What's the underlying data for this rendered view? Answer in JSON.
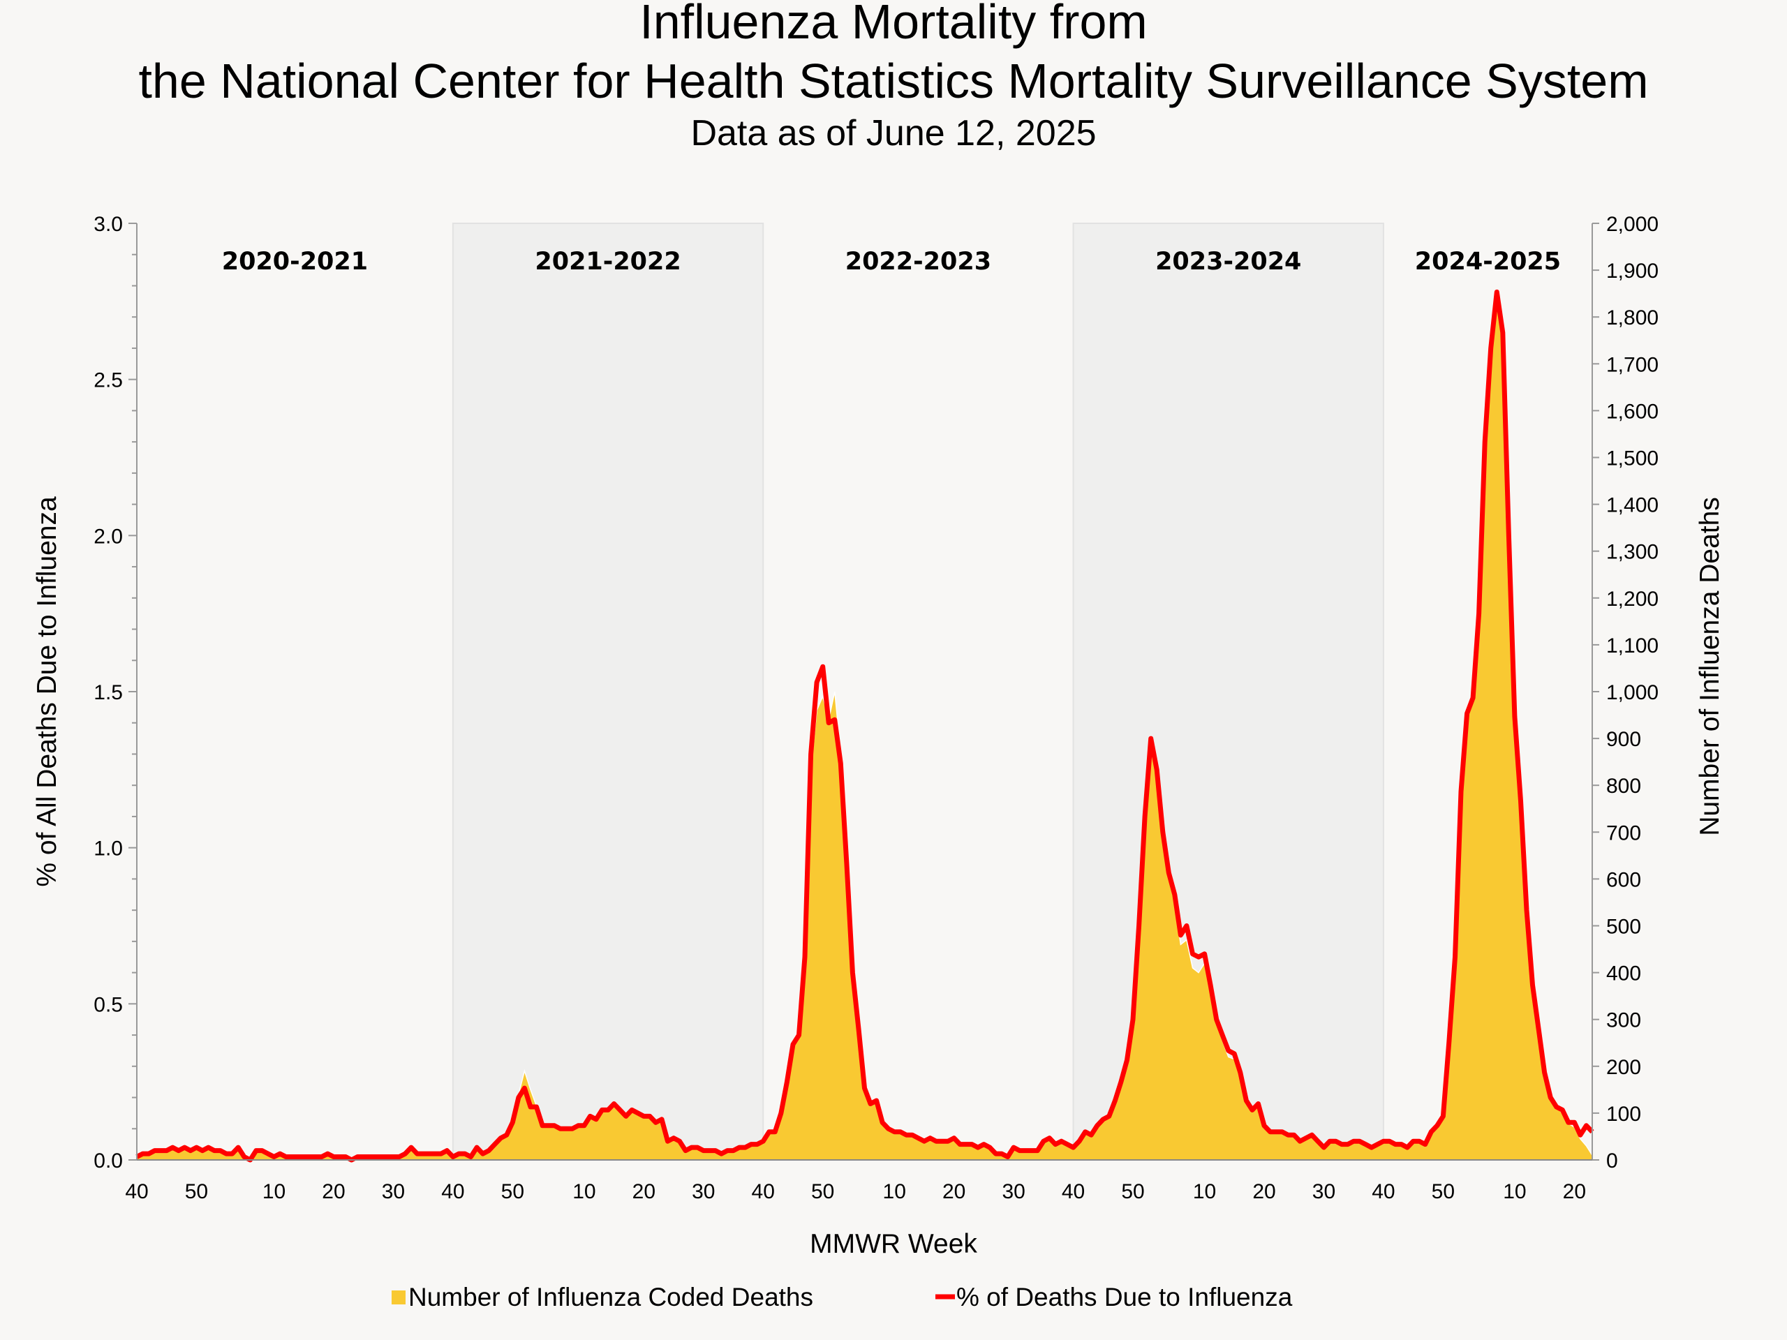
{
  "chart_data": {
    "type": "area+line",
    "title_line1": "Influenza Mortality from",
    "title_line2": "the National Center for Health Statistics Mortality Surveillance System",
    "subtitle": "Data as of June 12, 2025",
    "xlabel": "MMWR Week",
    "ylabel_left": "% of All Deaths Due to Influenza",
    "ylabel_right": "Number of Influenza Deaths",
    "ylim_left": [
      0,
      3.0
    ],
    "ylim_right": [
      0,
      2000
    ],
    "yticks_left": [
      "0.0",
      "0.5",
      "1.0",
      "1.5",
      "2.0",
      "2.5",
      "3.0"
    ],
    "yticks_right": [
      "0",
      "100",
      "200",
      "300",
      "400",
      "500",
      "600",
      "700",
      "800",
      "900",
      "1,000",
      "1,100",
      "1,200",
      "1,300",
      "1,400",
      "1,500",
      "1,600",
      "1,700",
      "1,800",
      "1,900",
      "2,000"
    ],
    "legend_position": "bottom",
    "colors": {
      "deaths_area": "#f9c932",
      "pct_line": "#ff0000",
      "shaded_season": "#efefee",
      "background": "#f8f7f5"
    },
    "series": [
      {
        "name": "Number of Influenza Coded Deaths",
        "type": "area",
        "axis": "right"
      },
      {
        "name": "% of Deaths Due to Influenza",
        "type": "line",
        "axis": "left"
      }
    ],
    "seasons": [
      {
        "label": "2020-2021",
        "shaded": false,
        "week_ticks": [
          "40",
          "50",
          "10",
          "20",
          "30"
        ],
        "weeks_in_first_year": 53,
        "pct": [
          0.01,
          0.02,
          0.02,
          0.03,
          0.03,
          0.03,
          0.04,
          0.03,
          0.04,
          0.03,
          0.04,
          0.03,
          0.04,
          0.03,
          0.03,
          0.02,
          0.02,
          0.04,
          0.01,
          0.0,
          0.03,
          0.03,
          0.02,
          0.01,
          0.02,
          0.01,
          0.01,
          0.01,
          0.01,
          0.01,
          0.01,
          0.01,
          0.02,
          0.01,
          0.01,
          0.01,
          0.0,
          0.01,
          0.01,
          0.01,
          0.01,
          0.01,
          0.01,
          0.01,
          0.01,
          0.02,
          0.04,
          0.02,
          0.02,
          0.02,
          0.02,
          0.02,
          0.03
        ],
        "deaths": [
          7,
          13,
          13,
          20,
          20,
          20,
          26,
          20,
          26,
          20,
          26,
          20,
          26,
          20,
          20,
          13,
          13,
          26,
          7,
          0,
          20,
          20,
          13,
          7,
          13,
          7,
          7,
          7,
          7,
          7,
          7,
          7,
          13,
          7,
          7,
          7,
          0,
          7,
          7,
          7,
          7,
          7,
          7,
          7,
          7,
          13,
          26,
          13,
          13,
          13,
          13,
          13,
          20
        ]
      },
      {
        "label": "2021-2022",
        "shaded": true,
        "week_ticks": [
          "40",
          "50",
          "10",
          "20",
          "30"
        ],
        "weeks_in_first_year": 52,
        "pct": [
          0.01,
          0.02,
          0.02,
          0.01,
          0.04,
          0.02,
          0.03,
          0.05,
          0.07,
          0.08,
          0.12,
          0.2,
          0.23,
          0.17,
          0.17,
          0.11,
          0.11,
          0.11,
          0.1,
          0.1,
          0.1,
          0.11,
          0.11,
          0.14,
          0.13,
          0.16,
          0.16,
          0.18,
          0.16,
          0.14,
          0.16,
          0.15,
          0.14,
          0.14,
          0.12,
          0.13,
          0.06,
          0.07,
          0.06,
          0.03,
          0.04,
          0.04,
          0.03,
          0.03,
          0.03,
          0.02,
          0.03,
          0.03,
          0.04,
          0.04,
          0.05,
          0.05
        ],
        "deaths": [
          7,
          13,
          13,
          7,
          26,
          13,
          20,
          33,
          46,
          52,
          78,
          140,
          190,
          150,
          115,
          72,
          72,
          72,
          65,
          65,
          65,
          72,
          72,
          91,
          85,
          104,
          104,
          117,
          104,
          91,
          104,
          98,
          91,
          91,
          78,
          85,
          39,
          46,
          39,
          20,
          26,
          26,
          20,
          20,
          20,
          13,
          20,
          20,
          26,
          26,
          33,
          33
        ]
      },
      {
        "label": "2022-2023",
        "shaded": false,
        "week_ticks": [
          "40",
          "50",
          "10",
          "20",
          "30"
        ],
        "weeks_in_first_year": 52,
        "pct": [
          0.06,
          0.09,
          0.09,
          0.15,
          0.25,
          0.37,
          0.4,
          0.65,
          1.3,
          1.53,
          1.58,
          1.4,
          1.41,
          1.27,
          0.95,
          0.6,
          0.42,
          0.23,
          0.18,
          0.19,
          0.12,
          0.1,
          0.09,
          0.09,
          0.08,
          0.08,
          0.07,
          0.06,
          0.07,
          0.06,
          0.06,
          0.06,
          0.07,
          0.05,
          0.05,
          0.05,
          0.04,
          0.05,
          0.04,
          0.02,
          0.02,
          0.01,
          0.04,
          0.03,
          0.03,
          0.03,
          0.03,
          0.06,
          0.07,
          0.05,
          0.06,
          0.05
        ],
        "deaths": [
          39,
          58,
          58,
          98,
          163,
          240,
          260,
          420,
          830,
          960,
          990,
          940,
          1000,
          870,
          640,
          400,
          280,
          150,
          118,
          124,
          78,
          65,
          58,
          58,
          52,
          52,
          46,
          39,
          46,
          39,
          39,
          39,
          46,
          33,
          33,
          33,
          26,
          33,
          26,
          13,
          13,
          7,
          26,
          20,
          20,
          20,
          20,
          39,
          46,
          33,
          39,
          33
        ]
      },
      {
        "label": "2023-2024",
        "shaded": true,
        "week_ticks": [
          "40",
          "50",
          "10",
          "20",
          "30"
        ],
        "weeks_in_first_year": 52,
        "pct": [
          0.04,
          0.06,
          0.09,
          0.08,
          0.11,
          0.13,
          0.14,
          0.19,
          0.25,
          0.32,
          0.45,
          0.75,
          1.1,
          1.35,
          1.25,
          1.05,
          0.92,
          0.85,
          0.72,
          0.75,
          0.66,
          0.65,
          0.66,
          0.56,
          0.45,
          0.4,
          0.35,
          0.34,
          0.28,
          0.19,
          0.16,
          0.18,
          0.11,
          0.09,
          0.09,
          0.09,
          0.08,
          0.08,
          0.06,
          0.07,
          0.08,
          0.06,
          0.04,
          0.06,
          0.06,
          0.05,
          0.05,
          0.06,
          0.06,
          0.05,
          0.04,
          0.05
        ],
        "deaths": [
          26,
          39,
          58,
          52,
          72,
          85,
          91,
          124,
          163,
          208,
          293,
          488,
          715,
          870,
          830,
          700,
          610,
          550,
          460,
          470,
          410,
          400,
          420,
          360,
          290,
          255,
          220,
          215,
          180,
          120,
          104,
          117,
          72,
          58,
          58,
          58,
          52,
          52,
          39,
          46,
          52,
          39,
          26,
          39,
          39,
          33,
          33,
          39,
          39,
          33,
          26,
          33
        ]
      },
      {
        "label": "2024-2025",
        "shaded": false,
        "week_ticks": [
          "40",
          "50",
          "10",
          "20"
        ],
        "weeks_in_first_year": 52,
        "pct": [
          0.06,
          0.06,
          0.05,
          0.05,
          0.04,
          0.06,
          0.06,
          0.05,
          0.09,
          0.11,
          0.14,
          0.38,
          0.65,
          1.18,
          1.43,
          1.48,
          1.75,
          2.3,
          2.6,
          2.78,
          2.65,
          2.0,
          1.42,
          1.15,
          0.8,
          0.56,
          0.42,
          0.28,
          0.2,
          0.17,
          0.16,
          0.12,
          0.12,
          0.08,
          0.11,
          0.09
        ],
        "deaths": [
          39,
          39,
          33,
          33,
          26,
          39,
          39,
          33,
          58,
          72,
          91,
          250,
          430,
          780,
          950,
          985,
          1160,
          1520,
          1720,
          1830,
          1760,
          1320,
          940,
          760,
          530,
          370,
          280,
          185,
          130,
          112,
          100,
          78,
          70,
          45,
          30,
          10
        ]
      }
    ]
  }
}
